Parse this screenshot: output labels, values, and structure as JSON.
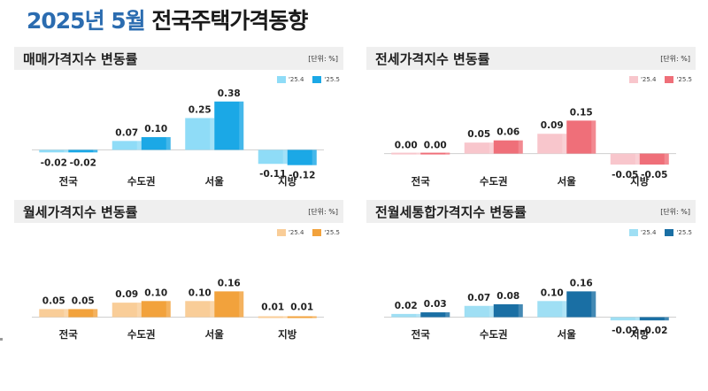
{
  "page": {
    "title_year_month": "2025년 5월",
    "title_rest": " 전국주택가격동향"
  },
  "unit_label": "[단위: %]",
  "chart_data": [
    {
      "type": "bar",
      "title": "매매가격지수 변동률",
      "categories": [
        "전국",
        "수도권",
        "서울",
        "지방"
      ],
      "series": [
        {
          "name": "'25.4",
          "values": [
            -0.02,
            0.07,
            0.25,
            -0.11
          ],
          "color": "#8fdcf7",
          "label_color": "#7fd3f2"
        },
        {
          "name": "'25.5",
          "values": [
            -0.02,
            0.1,
            0.38,
            -0.12
          ],
          "color": "#1ba8e6",
          "label_color": "#12a2e2"
        }
      ],
      "ylim": [
        -0.15,
        0.42
      ]
    },
    {
      "type": "bar",
      "title": "전세가격지수 변동률",
      "categories": [
        "전국",
        "수도권",
        "서울",
        "지방"
      ],
      "series": [
        {
          "name": "'25.4",
          "values": [
            0.0,
            0.05,
            0.09,
            -0.05
          ],
          "color": "#f8c6cc",
          "label_color": "#f6c1c7"
        },
        {
          "name": "'25.5",
          "values": [
            0.0,
            0.06,
            0.15,
            -0.05
          ],
          "color": "#ef6f79",
          "label_color": "#ee6a74"
        }
      ],
      "ylim": [
        -0.07,
        0.26
      ]
    },
    {
      "type": "bar",
      "title": "월세가격지수 변동률",
      "categories": [
        "전국",
        "수도권",
        "서울",
        "지방"
      ],
      "series": [
        {
          "name": "'25.4",
          "values": [
            0.05,
            0.09,
            0.1,
            0.01
          ],
          "color": "#f9cd98",
          "label_color": "#f8c993"
        },
        {
          "name": "'25.5",
          "values": [
            0.05,
            0.1,
            0.16,
            0.01
          ],
          "color": "#f2a23c",
          "label_color": "#f09f37"
        }
      ],
      "ylim": [
        -0.03,
        0.42
      ]
    },
    {
      "type": "bar",
      "title": "전월세통합가격지수 변동률",
      "categories": [
        "전국",
        "수도권",
        "서울",
        "지방"
      ],
      "series": [
        {
          "name": "'25.4",
          "values": [
            0.02,
            0.07,
            0.1,
            -0.02
          ],
          "color": "#9fdff4",
          "label_color": "#94dbf2"
        },
        {
          "name": "'25.5",
          "values": [
            0.03,
            0.08,
            0.16,
            -0.02
          ],
          "color": "#1a6fa4",
          "label_color": "#19699c"
        }
      ],
      "ylim": [
        -0.03,
        0.42
      ]
    }
  ]
}
